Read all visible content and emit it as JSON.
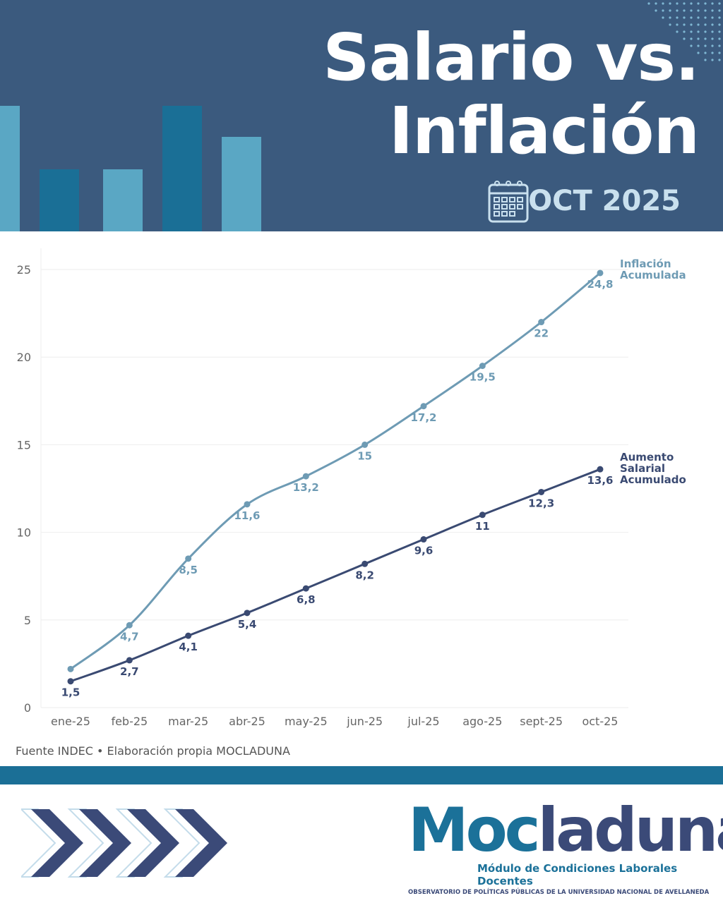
{
  "header": {
    "title_line1": "Salario vs.",
    "title_line2": "Inflación",
    "date": "OCT 2025",
    "icon": "calendar-icon",
    "colors": {
      "background": "#3b5a7e",
      "bar_light": "#5aa7c4",
      "bar_dark": "#1a6f96"
    }
  },
  "chart_data": {
    "type": "line",
    "categories": [
      "ene-25",
      "feb-25",
      "mar-25",
      "abr-25",
      "may-25",
      "jun-25",
      "jul-25",
      "ago-25",
      "sept-25",
      "oct-25"
    ],
    "ylim": [
      0,
      25
    ],
    "yticks": [
      "0",
      "5",
      "10",
      "15",
      "20",
      "25"
    ],
    "grid": true,
    "series": [
      {
        "name": "Inflación Acumulada",
        "name_lines": [
          "Inflación",
          "Acumulada"
        ],
        "color": "#6e9bb4",
        "values": [
          2.2,
          4.7,
          8.5,
          11.6,
          13.2,
          15,
          17.2,
          19.5,
          22,
          24.8
        ],
        "labels": [
          "",
          "4,7",
          "8,5",
          "11,6",
          "13,2",
          "15",
          "17,2",
          "19,5",
          "22",
          "24,8"
        ]
      },
      {
        "name": "Aumento Salarial Acumulado",
        "name_lines": [
          "Aumento",
          "Salarial",
          "Acumulado"
        ],
        "color": "#3a4a72",
        "values": [
          1.5,
          2.7,
          4.1,
          5.4,
          6.8,
          8.2,
          9.6,
          11,
          12.3,
          13.6
        ],
        "labels": [
          "1,5",
          "2,7",
          "4,1",
          "5,4",
          "6,8",
          "8,2",
          "9,6",
          "11",
          "12,3",
          "13,6"
        ]
      }
    ]
  },
  "source": "Fuente INDEC • Elaboración propia MOCLADUNA",
  "footer": {
    "logo_text": "Mocladuna",
    "logo_subtitle": "Módulo de Condiciones Laborales Docentes",
    "logo_subtitle2": "OBSERVATORIO DE POLÍTICAS PÚBLICAS DE LA UNIVERSIDAD NACIONAL DE AVELLANEDA"
  }
}
